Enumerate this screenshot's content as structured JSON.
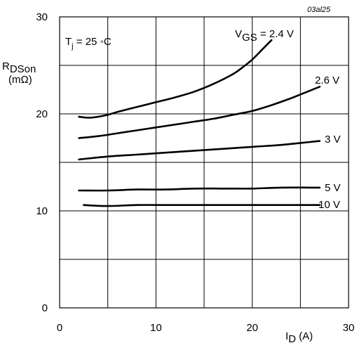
{
  "chart_data": {
    "type": "line",
    "code": "03al25",
    "annotation": {
      "prefix": "T",
      "sub": "j",
      "suffix": " = 25 ◦C"
    },
    "ylabel": {
      "main": "R",
      "sub": "DSon",
      "unit": "(mΩ)"
    },
    "xlabel": {
      "main": "I",
      "sub": "D",
      "unit": " (A)"
    },
    "xlim": [
      0,
      30
    ],
    "ylim": [
      0,
      30
    ],
    "xticks": [
      "0",
      "10",
      "20",
      "30"
    ],
    "yticks": [
      "0",
      "10",
      "20",
      "30"
    ],
    "grid": true,
    "series_label_prefix": {
      "main": "V",
      "sub": "GS",
      "suffix": " = "
    },
    "series": [
      {
        "name": "2.4 V",
        "x": [
          2,
          3,
          4,
          5,
          6,
          8,
          10,
          12,
          14,
          16,
          18,
          19,
          20,
          21,
          22
        ],
        "y": [
          19.7,
          19.6,
          19.7,
          19.9,
          20.2,
          20.7,
          21.2,
          21.7,
          22.3,
          23.1,
          24.1,
          24.8,
          25.6,
          26.6,
          27.6
        ]
      },
      {
        "name": "2.6 V",
        "x": [
          2,
          4,
          6,
          8,
          10,
          12,
          14,
          16,
          18,
          20,
          22,
          24,
          25,
          26,
          27
        ],
        "y": [
          17.5,
          17.7,
          18.0,
          18.3,
          18.6,
          18.9,
          19.2,
          19.5,
          19.9,
          20.3,
          20.9,
          21.6,
          22.0,
          22.4,
          22.8
        ]
      },
      {
        "name": "3 V",
        "x": [
          2,
          5,
          8,
          11,
          14,
          17,
          20,
          23,
          25,
          27
        ],
        "y": [
          15.3,
          15.6,
          15.8,
          16.0,
          16.2,
          16.4,
          16.6,
          16.8,
          17.0,
          17.2
        ]
      },
      {
        "name": "5 V",
        "x": [
          2,
          5,
          8,
          11,
          14,
          17,
          20,
          23,
          26,
          27
        ],
        "y": [
          12.1,
          12.1,
          12.2,
          12.2,
          12.3,
          12.3,
          12.3,
          12.4,
          12.4,
          12.4
        ]
      },
      {
        "name": "10 V",
        "x": [
          2.5,
          5,
          8,
          11,
          14,
          17,
          20,
          23,
          26,
          27
        ],
        "y": [
          10.6,
          10.5,
          10.6,
          10.6,
          10.6,
          10.6,
          10.6,
          10.6,
          10.6,
          10.6
        ]
      }
    ]
  }
}
